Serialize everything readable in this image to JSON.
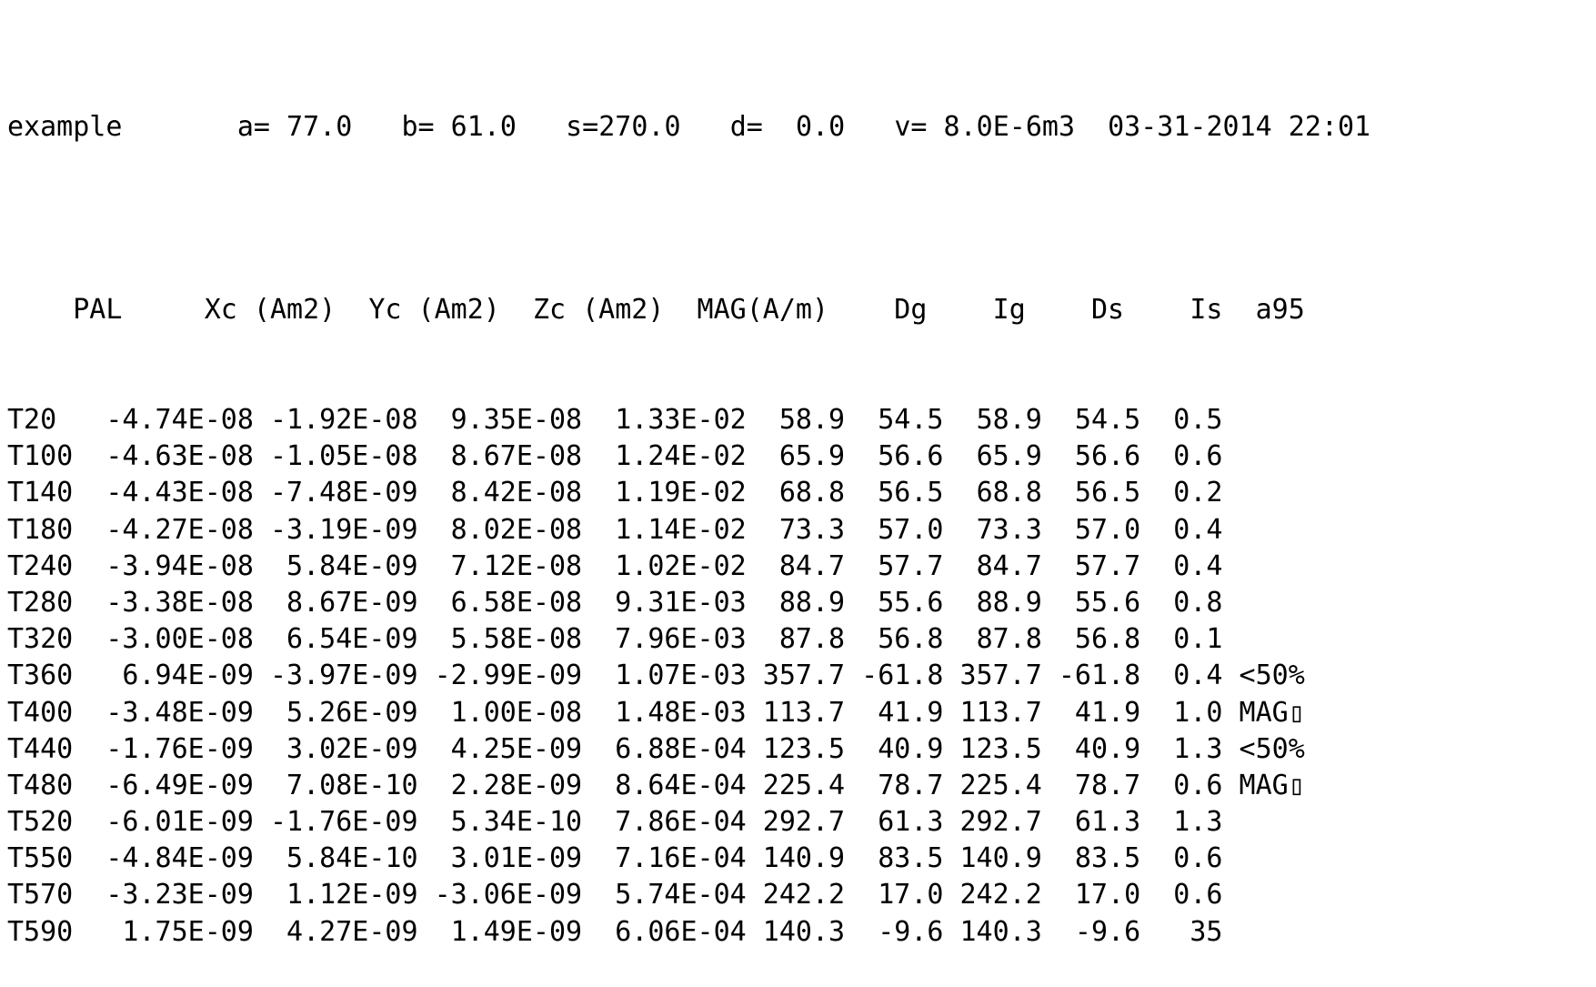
{
  "header_line": "example       a= 77.0   b= 61.0   s=270.0   d=  0.0   v= 8.0E-6m3  03-31-2014 22:01",
  "columns": [
    "PAL",
    "Xc (Am2)",
    "Yc (Am2)",
    "Zc (Am2)",
    "MAG(A/m)",
    "Dg",
    "Ig",
    "Ds",
    "Is",
    "a95"
  ],
  "rows": [
    {
      "pal": "T20",
      "xc": "-4.74E-08",
      "yc": "-1.92E-08",
      "zc": "9.35E-08",
      "mag": "1.33E-02",
      "dg": "58.9",
      "ig": "54.5",
      "ds": "58.9",
      "is": "54.5",
      "a95": "0.5",
      "flag": ""
    },
    {
      "pal": "T100",
      "xc": "-4.63E-08",
      "yc": "-1.05E-08",
      "zc": "8.67E-08",
      "mag": "1.24E-02",
      "dg": "65.9",
      "ig": "56.6",
      "ds": "65.9",
      "is": "56.6",
      "a95": "0.6",
      "flag": ""
    },
    {
      "pal": "T140",
      "xc": "-4.43E-08",
      "yc": "-7.48E-09",
      "zc": "8.42E-08",
      "mag": "1.19E-02",
      "dg": "68.8",
      "ig": "56.5",
      "ds": "68.8",
      "is": "56.5",
      "a95": "0.2",
      "flag": ""
    },
    {
      "pal": "T180",
      "xc": "-4.27E-08",
      "yc": "-3.19E-09",
      "zc": "8.02E-08",
      "mag": "1.14E-02",
      "dg": "73.3",
      "ig": "57.0",
      "ds": "73.3",
      "is": "57.0",
      "a95": "0.4",
      "flag": ""
    },
    {
      "pal": "T240",
      "xc": "-3.94E-08",
      "yc": "5.84E-09",
      "zc": "7.12E-08",
      "mag": "1.02E-02",
      "dg": "84.7",
      "ig": "57.7",
      "ds": "84.7",
      "is": "57.7",
      "a95": "0.4",
      "flag": ""
    },
    {
      "pal": "T280",
      "xc": "-3.38E-08",
      "yc": "8.67E-09",
      "zc": "6.58E-08",
      "mag": "9.31E-03",
      "dg": "88.9",
      "ig": "55.6",
      "ds": "88.9",
      "is": "55.6",
      "a95": "0.8",
      "flag": ""
    },
    {
      "pal": "T320",
      "xc": "-3.00E-08",
      "yc": "6.54E-09",
      "zc": "5.58E-08",
      "mag": "7.96E-03",
      "dg": "87.8",
      "ig": "56.8",
      "ds": "87.8",
      "is": "56.8",
      "a95": "0.1",
      "flag": ""
    },
    {
      "pal": "T360",
      "xc": "6.94E-09",
      "yc": "-3.97E-09",
      "zc": "-2.99E-09",
      "mag": "1.07E-03",
      "dg": "357.7",
      "ig": "-61.8",
      "ds": "357.7",
      "is": "-61.8",
      "a95": "0.4",
      "flag": "<50%"
    },
    {
      "pal": "T400",
      "xc": "-3.48E-09",
      "yc": "5.26E-09",
      "zc": "1.00E-08",
      "mag": "1.48E-03",
      "dg": "113.7",
      "ig": "41.9",
      "ds": "113.7",
      "is": "41.9",
      "a95": "1.0",
      "flag": "MAG▯"
    },
    {
      "pal": "T440",
      "xc": "-1.76E-09",
      "yc": "3.02E-09",
      "zc": "4.25E-09",
      "mag": "6.88E-04",
      "dg": "123.5",
      "ig": "40.9",
      "ds": "123.5",
      "is": "40.9",
      "a95": "1.3",
      "flag": "<50%"
    },
    {
      "pal": "T480",
      "xc": "-6.49E-09",
      "yc": "7.08E-10",
      "zc": "2.28E-09",
      "mag": "8.64E-04",
      "dg": "225.4",
      "ig": "78.7",
      "ds": "225.4",
      "is": "78.7",
      "a95": "0.6",
      "flag": "MAG▯"
    },
    {
      "pal": "T520",
      "xc": "-6.01E-09",
      "yc": "-1.76E-09",
      "zc": "5.34E-10",
      "mag": "7.86E-04",
      "dg": "292.7",
      "ig": "61.3",
      "ds": "292.7",
      "is": "61.3",
      "a95": "1.3",
      "flag": ""
    },
    {
      "pal": "T550",
      "xc": "-4.84E-09",
      "yc": "5.84E-10",
      "zc": "3.01E-09",
      "mag": "7.16E-04",
      "dg": "140.9",
      "ig": "83.5",
      "ds": "140.9",
      "is": "83.5",
      "a95": "0.6",
      "flag": ""
    },
    {
      "pal": "T570",
      "xc": "-3.23E-09",
      "yc": "1.12E-09",
      "zc": "-3.06E-09",
      "mag": "5.74E-04",
      "dg": "242.2",
      "ig": "17.0",
      "ds": "242.2",
      "is": "17.0",
      "a95": "0.6",
      "flag": ""
    },
    {
      "pal": "T590",
      "xc": "1.75E-09",
      "yc": "4.27E-09",
      "zc": "1.49E-09",
      "mag": "6.06E-04",
      "dg": "140.3",
      "ig": "-9.6",
      "ds": "140.3",
      "is": "-9.6",
      "a95": "35",
      "flag": ""
    }
  ]
}
